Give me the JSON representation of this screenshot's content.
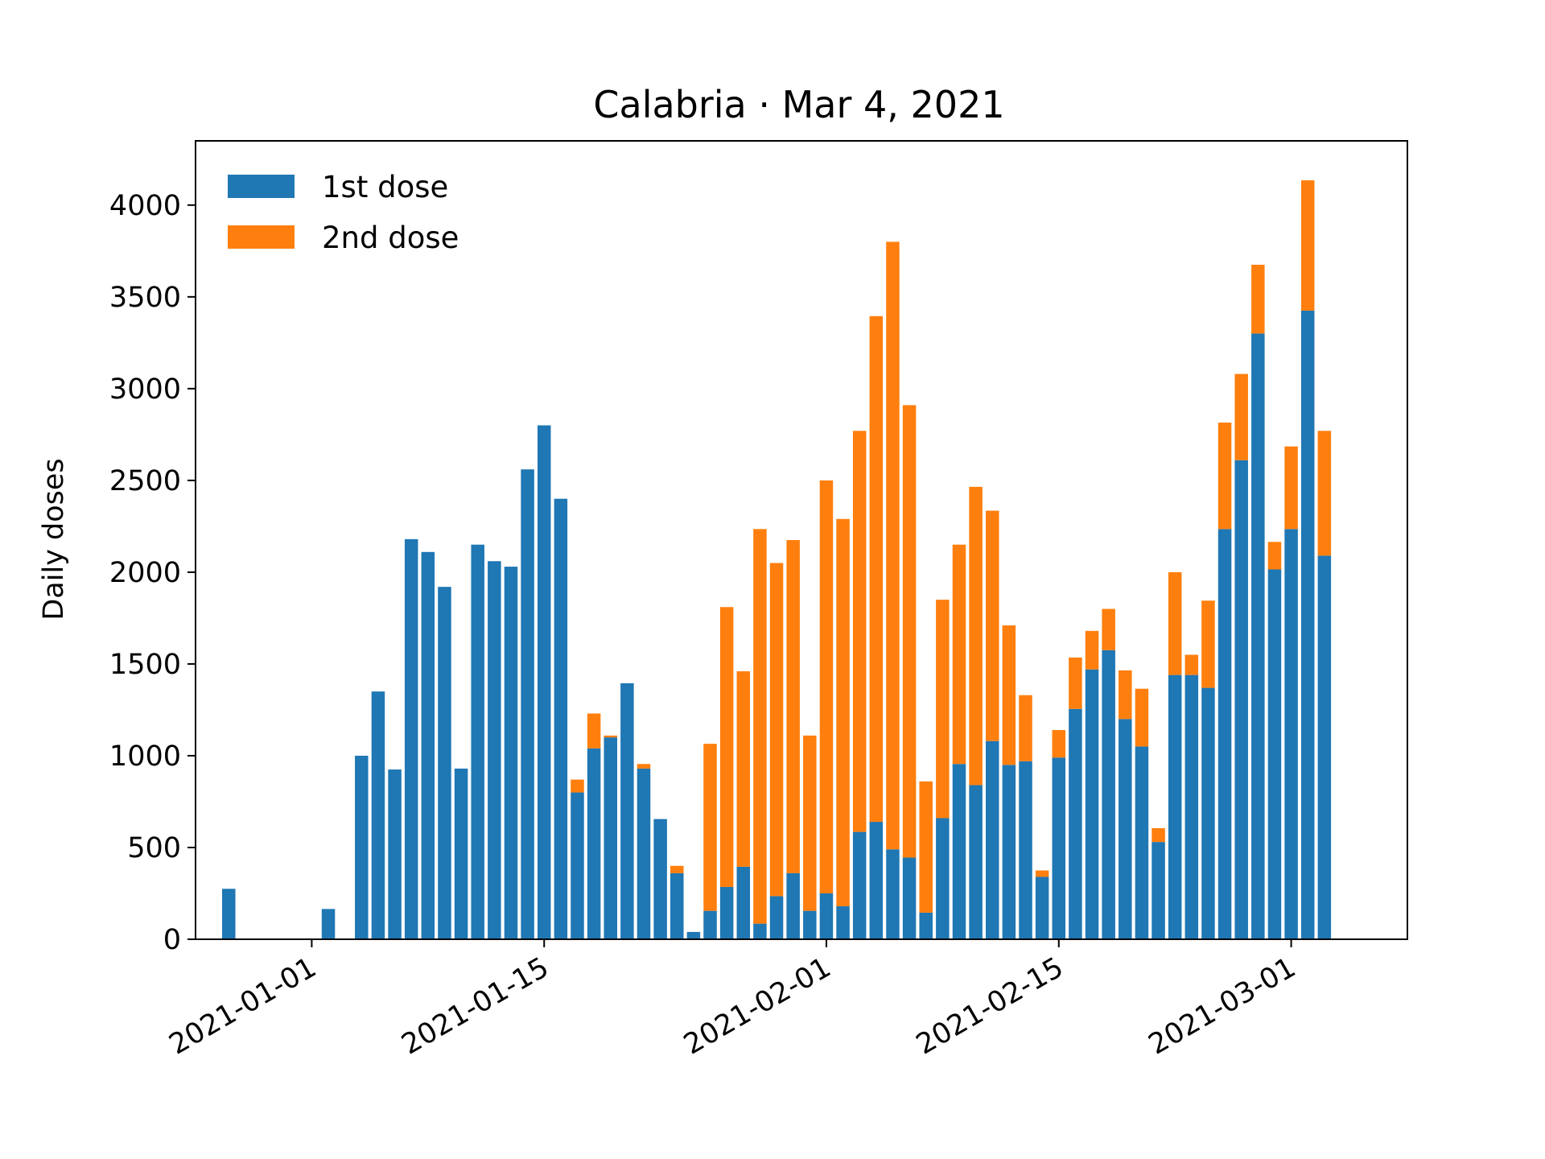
{
  "chart_data": {
    "type": "bar",
    "stacked": true,
    "title": "Calabria · Mar 4, 2021",
    "ylabel": "Daily doses",
    "ylim": [
      0,
      4350
    ],
    "yticks": [
      0,
      500,
      1000,
      1500,
      2000,
      2500,
      3000,
      3500,
      4000
    ],
    "xlim": [
      "2020-12-25",
      "2021-03-08"
    ],
    "xticks": [
      "2021-01-01",
      "2021-01-15",
      "2021-02-01",
      "2021-02-15",
      "2021-03-01"
    ],
    "legend_position": "top-left",
    "grid": false,
    "x": [
      "2020-12-27",
      "2020-12-28",
      "2020-12-29",
      "2020-12-30",
      "2020-12-31",
      "2021-01-01",
      "2021-01-02",
      "2021-01-03",
      "2021-01-04",
      "2021-01-05",
      "2021-01-06",
      "2021-01-07",
      "2021-01-08",
      "2021-01-09",
      "2021-01-10",
      "2021-01-11",
      "2021-01-12",
      "2021-01-13",
      "2021-01-14",
      "2021-01-15",
      "2021-01-16",
      "2021-01-17",
      "2021-01-18",
      "2021-01-19",
      "2021-01-20",
      "2021-01-21",
      "2021-01-22",
      "2021-01-23",
      "2021-01-24",
      "2021-01-25",
      "2021-01-26",
      "2021-01-27",
      "2021-01-28",
      "2021-01-29",
      "2021-01-30",
      "2021-01-31",
      "2021-02-01",
      "2021-02-02",
      "2021-02-03",
      "2021-02-04",
      "2021-02-05",
      "2021-02-06",
      "2021-02-07",
      "2021-02-08",
      "2021-02-09",
      "2021-02-10",
      "2021-02-11",
      "2021-02-12",
      "2021-02-13",
      "2021-02-14",
      "2021-02-15",
      "2021-02-16",
      "2021-02-17",
      "2021-02-18",
      "2021-02-19",
      "2021-02-20",
      "2021-02-21",
      "2021-02-22",
      "2021-02-23",
      "2021-02-24",
      "2021-02-25",
      "2021-02-26",
      "2021-02-27",
      "2021-02-28",
      "2021-03-01",
      "2021-03-02",
      "2021-03-03",
      "2021-03-04"
    ],
    "series": [
      {
        "name": "1st dose",
        "color": "#1f77b4",
        "values": [
          275,
          0,
          0,
          0,
          0,
          0,
          165,
          0,
          1000,
          1350,
          925,
          2180,
          2110,
          1920,
          930,
          2150,
          2060,
          2030,
          2560,
          2800,
          2400,
          800,
          1040,
          1100,
          1395,
          930,
          655,
          360,
          40,
          155,
          285,
          395,
          85,
          235,
          360,
          155,
          250,
          180,
          585,
          640,
          490,
          445,
          145,
          660,
          955,
          840,
          1080,
          950,
          970,
          340,
          990,
          1255,
          1470,
          1575,
          1200,
          1050,
          530,
          1440,
          1440,
          1370,
          2235,
          2610,
          3300,
          2015,
          2235,
          3425,
          2090,
          0
        ]
      },
      {
        "name": "2nd dose",
        "color": "#ff7f0e",
        "values": [
          0,
          0,
          0,
          0,
          0,
          0,
          0,
          0,
          0,
          0,
          0,
          0,
          0,
          0,
          0,
          0,
          0,
          0,
          0,
          0,
          0,
          70,
          190,
          10,
          0,
          25,
          0,
          40,
          0,
          910,
          1525,
          1065,
          2150,
          1815,
          1815,
          955,
          2250,
          2110,
          2185,
          2755,
          3310,
          2465,
          715,
          1190,
          1195,
          1625,
          1255,
          760,
          360,
          35,
          150,
          280,
          210,
          225,
          265,
          315,
          75,
          560,
          110,
          475,
          580,
          470,
          375,
          150,
          450,
          710,
          680,
          0
        ]
      }
    ]
  }
}
